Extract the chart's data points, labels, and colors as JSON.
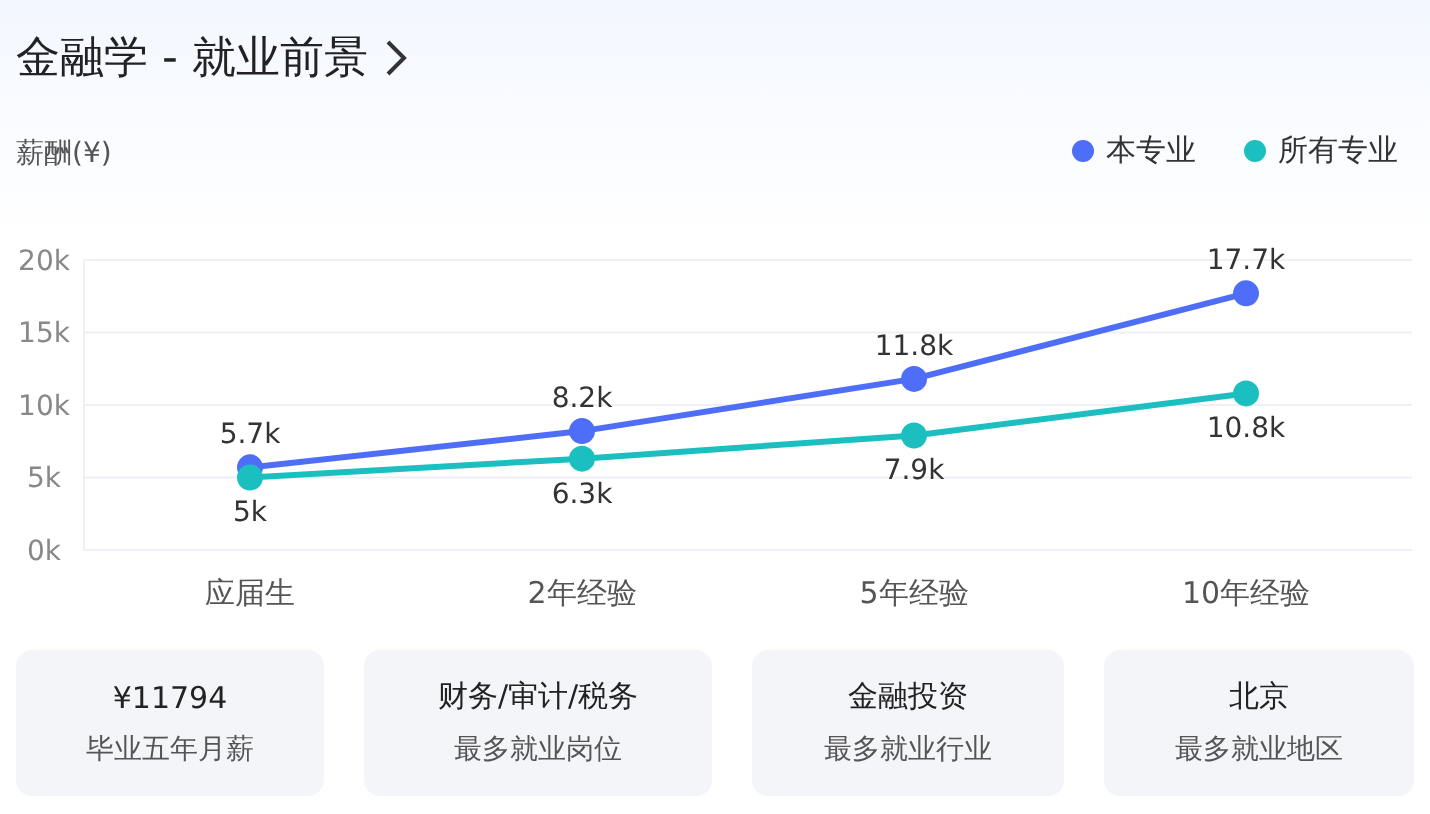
{
  "chart_data": [
    {
      "type": "line",
      "title": "金融学 - 就业前景",
      "ylabel": "薪酬(¥)",
      "categories": [
        "应届生",
        "2年经验",
        "5年经验",
        "10年经验"
      ],
      "series": [
        {
          "name": "本专业",
          "color": "#4f6ef7",
          "values": [
            5.7,
            8.2,
            11.8,
            17.7
          ],
          "value_labels": [
            "5.7k",
            "8.2k",
            "11.8k",
            "17.7k"
          ]
        },
        {
          "name": "所有专业",
          "color": "#1cbfbf",
          "values": [
            5,
            6.3,
            7.9,
            10.8
          ],
          "value_labels": [
            "5k",
            "6.3k",
            "7.9k",
            "10.8k"
          ]
        }
      ],
      "ylim": [
        0,
        20
      ],
      "yticks": [
        {
          "value": 0,
          "label": "0k"
        },
        {
          "value": 5,
          "label": "5k"
        },
        {
          "value": 10,
          "label": "10k"
        },
        {
          "value": 15,
          "label": "15k"
        },
        {
          "value": 20,
          "label": "20k"
        }
      ],
      "grid": "y",
      "legend": "top right",
      "marker": "circle",
      "line_style": "solid"
    },
    {
      "type": "other",
      "annotations": [
        "¥11794",
        "毕业五年月薪",
        "财务/审计/税务",
        "最多就业岗位",
        "金融投资",
        "最多就业行业",
        "北京",
        "最多就业地区"
      ]
    }
  ]
}
